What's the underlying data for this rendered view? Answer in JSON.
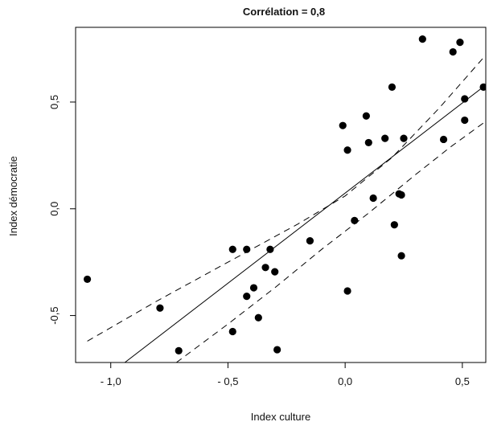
{
  "chart_data": {
    "type": "scatter",
    "title": "Corrélation = 0,8",
    "xlabel": "Index culture",
    "ylabel": "Index démocratie",
    "xlim": [
      -1.15,
      0.6
    ],
    "ylim": [
      -0.72,
      0.85
    ],
    "x_ticks": [
      {
        "value": -1.0,
        "label": "- 1,0"
      },
      {
        "value": -0.5,
        "label": "- 0,5"
      },
      {
        "value": 0.0,
        "label": "0,0"
      },
      {
        "value": 0.5,
        "label": "0,5"
      }
    ],
    "y_ticks": [
      {
        "value": -0.5,
        "label": "-0,5"
      },
      {
        "value": 0.0,
        "label": "0,0"
      },
      {
        "value": 0.5,
        "label": "0,5"
      }
    ],
    "grid": false,
    "points": [
      {
        "x": -1.1,
        "y": -0.33
      },
      {
        "x": -0.79,
        "y": -0.465
      },
      {
        "x": -0.71,
        "y": -0.665
      },
      {
        "x": -0.48,
        "y": -0.19
      },
      {
        "x": -0.48,
        "y": -0.575
      },
      {
        "x": -0.42,
        "y": -0.19
      },
      {
        "x": -0.42,
        "y": -0.41
      },
      {
        "x": -0.39,
        "y": -0.37
      },
      {
        "x": -0.37,
        "y": -0.51
      },
      {
        "x": -0.34,
        "y": -0.275
      },
      {
        "x": -0.32,
        "y": -0.19
      },
      {
        "x": -0.3,
        "y": -0.295
      },
      {
        "x": -0.29,
        "y": -0.66
      },
      {
        "x": -0.15,
        "y": -0.15
      },
      {
        "x": -0.01,
        "y": 0.39
      },
      {
        "x": 0.01,
        "y": 0.275
      },
      {
        "x": 0.01,
        "y": -0.385
      },
      {
        "x": 0.04,
        "y": -0.055
      },
      {
        "x": 0.09,
        "y": 0.435
      },
      {
        "x": 0.1,
        "y": 0.31
      },
      {
        "x": 0.12,
        "y": 0.05
      },
      {
        "x": 0.17,
        "y": 0.33
      },
      {
        "x": 0.2,
        "y": 0.57
      },
      {
        "x": 0.21,
        "y": -0.075
      },
      {
        "x": 0.23,
        "y": 0.07
      },
      {
        "x": 0.24,
        "y": 0.065
      },
      {
        "x": 0.24,
        "y": -0.22
      },
      {
        "x": 0.25,
        "y": 0.33
      },
      {
        "x": 0.33,
        "y": 0.795
      },
      {
        "x": 0.42,
        "y": 0.325
      },
      {
        "x": 0.46,
        "y": 0.735
      },
      {
        "x": 0.49,
        "y": 0.78
      },
      {
        "x": 0.51,
        "y": 0.515
      },
      {
        "x": 0.51,
        "y": 0.415
      },
      {
        "x": 0.59,
        "y": 0.57
      }
    ],
    "fit_line": [
      {
        "x": -0.94,
        "y": -0.72
      },
      {
        "x": 0.6,
        "y": 0.58
      }
    ],
    "confidence_upper": [
      {
        "x": -1.1,
        "y": -0.62
      },
      {
        "x": -0.8,
        "y": -0.43
      },
      {
        "x": -0.5,
        "y": -0.25
      },
      {
        "x": -0.2,
        "y": -0.07
      },
      {
        "x": 0.0,
        "y": 0.06
      },
      {
        "x": 0.2,
        "y": 0.24
      },
      {
        "x": 0.4,
        "y": 0.47
      },
      {
        "x": 0.6,
        "y": 0.72
      }
    ],
    "confidence_lower": [
      {
        "x": -0.72,
        "y": -0.72
      },
      {
        "x": -0.5,
        "y": -0.54
      },
      {
        "x": -0.3,
        "y": -0.37
      },
      {
        "x": -0.1,
        "y": -0.19
      },
      {
        "x": 0.1,
        "y": -0.02
      },
      {
        "x": 0.3,
        "y": 0.16
      },
      {
        "x": 0.45,
        "y": 0.29
      },
      {
        "x": 0.6,
        "y": 0.41
      }
    ]
  }
}
